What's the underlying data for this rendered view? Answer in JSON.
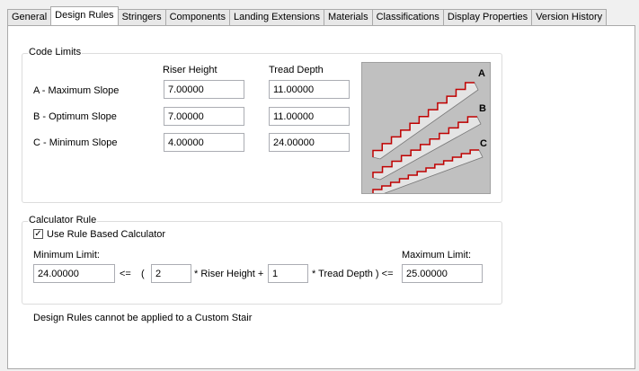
{
  "tabs": [
    "General",
    "Design Rules",
    "Stringers",
    "Components",
    "Landing Extensions",
    "Materials",
    "Classifications",
    "Display Properties",
    "Version History"
  ],
  "active_tab": "Design Rules",
  "code_limits": {
    "title": "Code Limits",
    "col_riser": "Riser Height",
    "col_tread": "Tread Depth",
    "rows": [
      {
        "label": "A - Maximum Slope",
        "riser": "7.00000",
        "tread": "11.00000"
      },
      {
        "label": "B - Optimum Slope",
        "riser": "7.00000",
        "tread": "11.00000"
      },
      {
        "label": "C - Minimum Slope",
        "riser": "4.00000",
        "tread": "24.00000"
      }
    ],
    "image_labels": [
      "A",
      "B",
      "C"
    ]
  },
  "calculator": {
    "title": "Calculator Rule",
    "checkbox_label": "Use Rule Based Calculator",
    "checked": true,
    "min_label": "Minimum Limit:",
    "max_label": "Maximum Limit:",
    "min_value": "24.00000",
    "le1": "<=",
    "paren": "(",
    "riser_mult": "2",
    "riser_text": "* Riser Height +",
    "tread_mult": "1",
    "tread_text": "* Tread Depth ) <=",
    "max_value": "25.00000"
  },
  "note": "Design Rules cannot be applied to a Custom Stair",
  "colors": {
    "stair_edge": "#c00000",
    "image_bg": "#c0c0c0"
  }
}
